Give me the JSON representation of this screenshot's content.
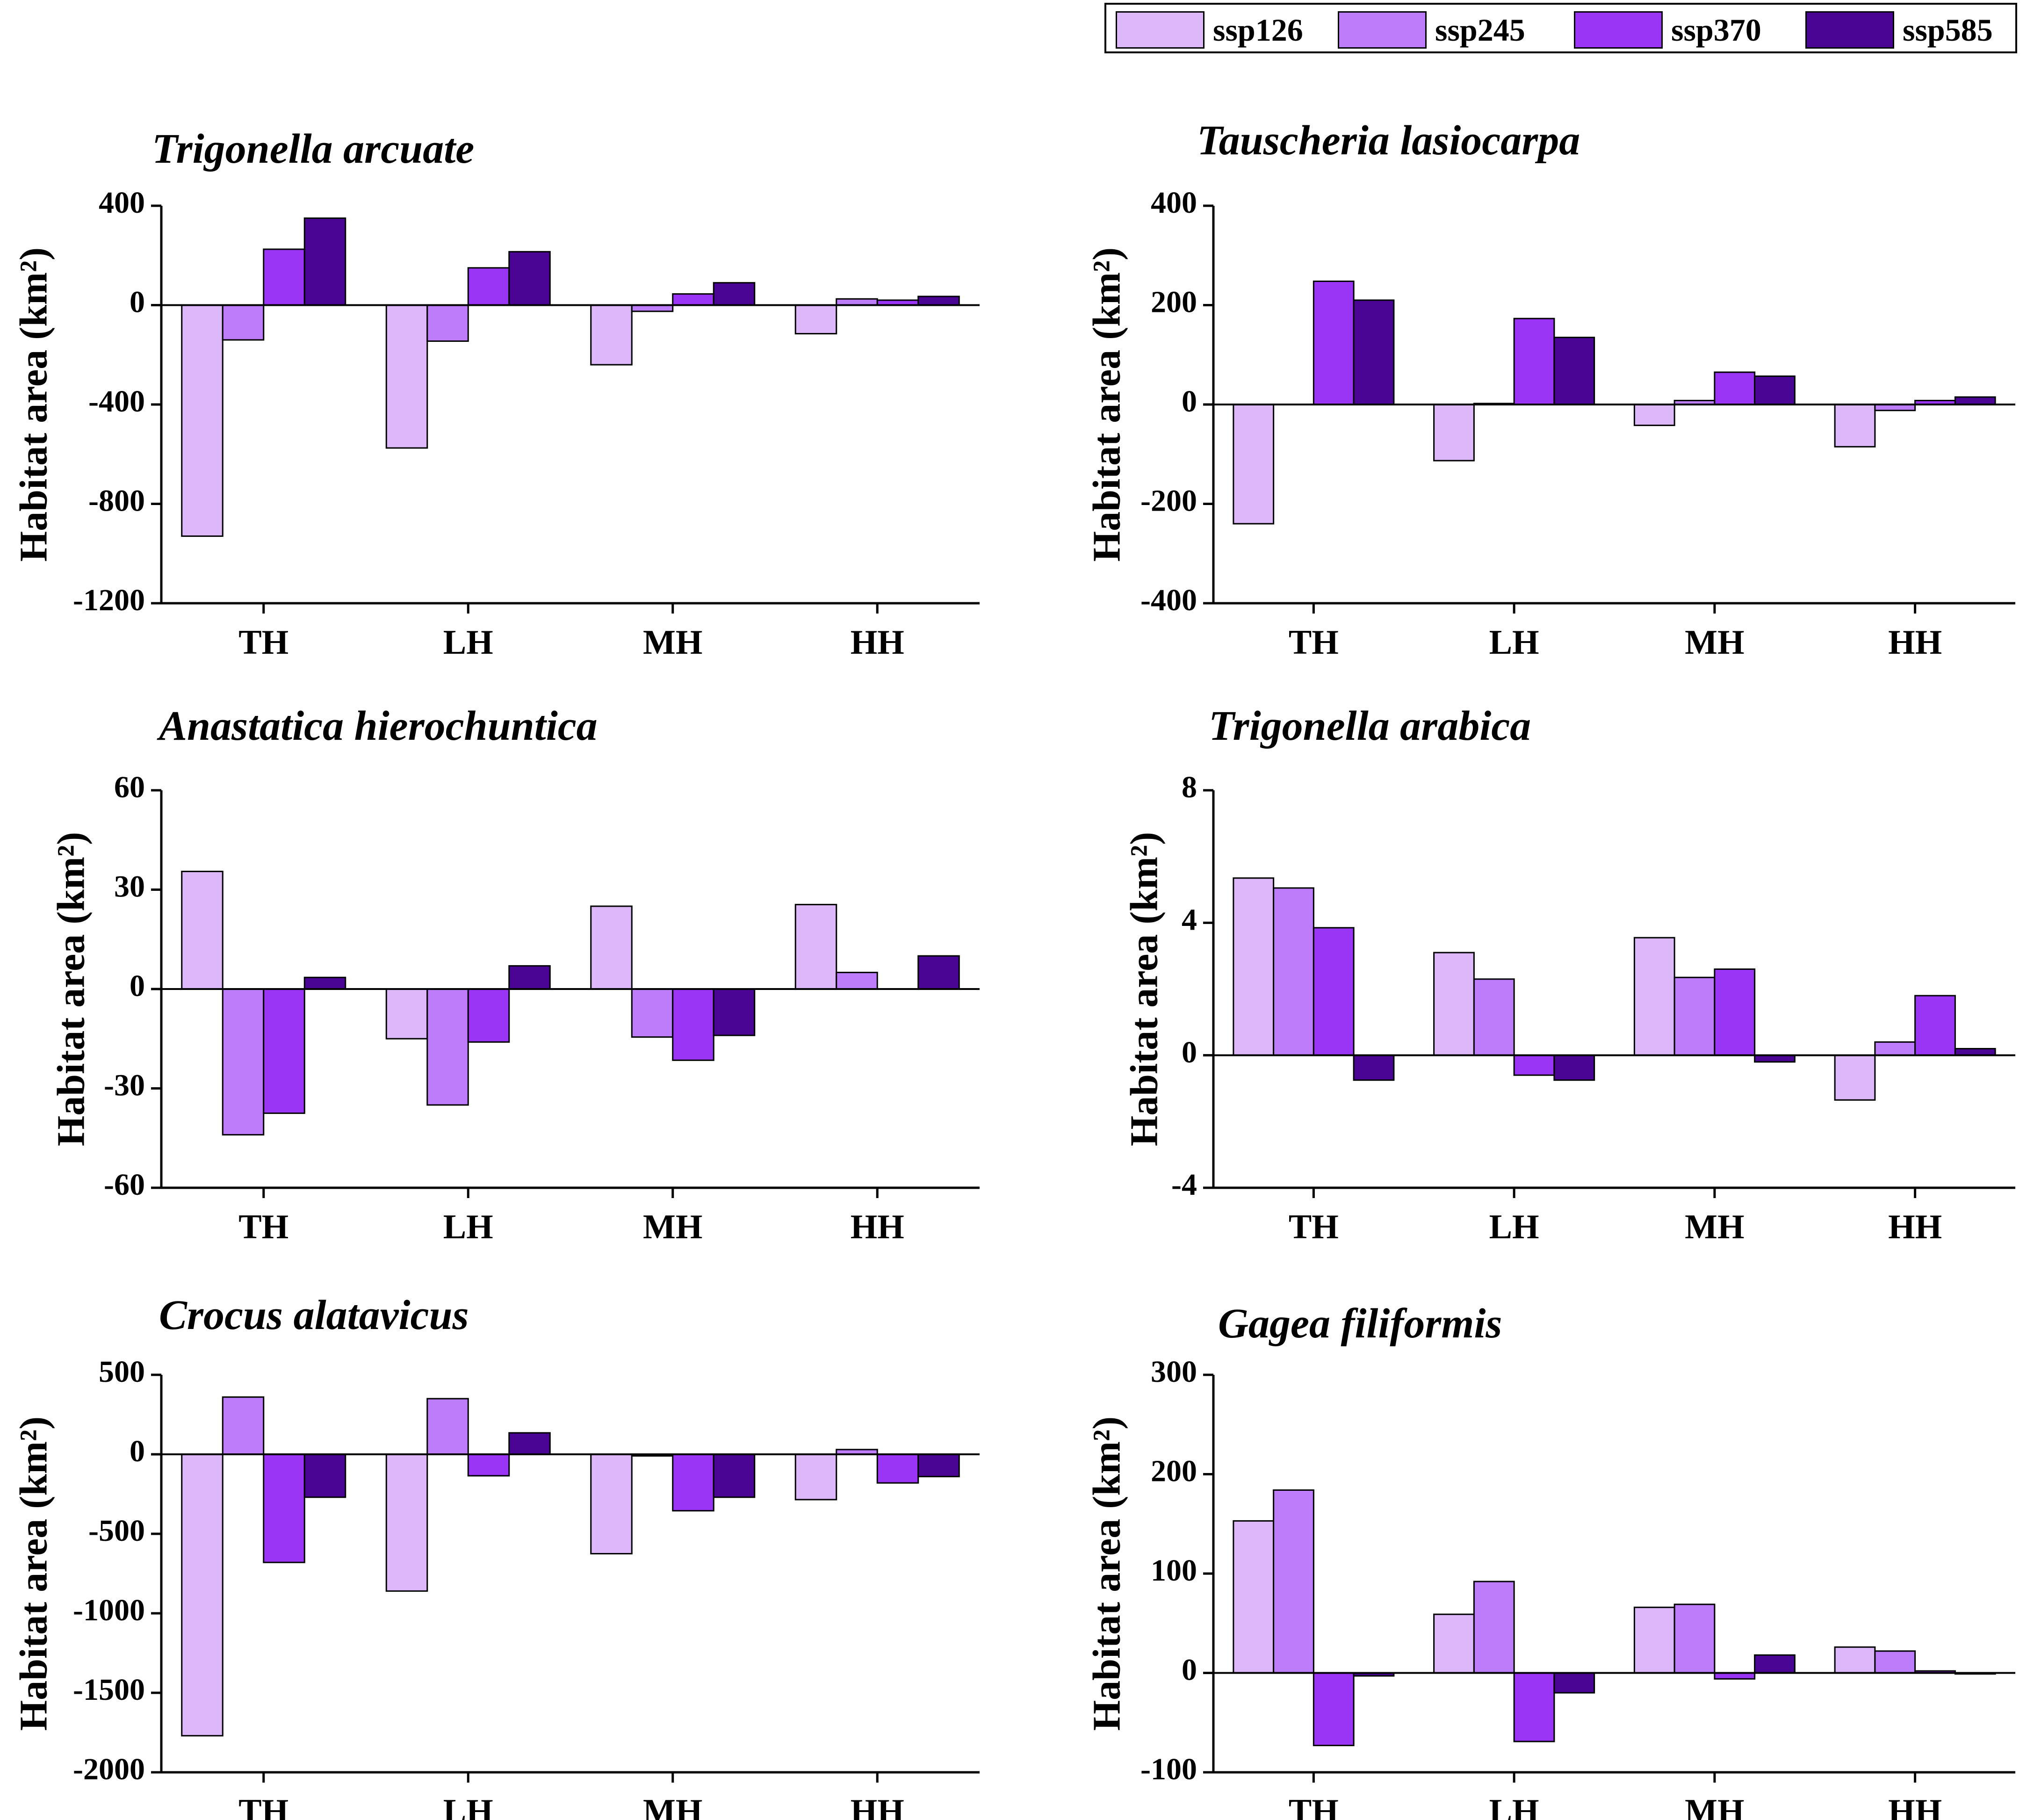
{
  "legend": {
    "items": [
      {
        "label": "ssp126",
        "color": "#dcb8fb"
      },
      {
        "label": "ssp245",
        "color": "#bd7cfa"
      },
      {
        "label": "ssp370",
        "color": "#9b35f5"
      },
      {
        "label": "ssp585",
        "color": "#4b0595"
      }
    ]
  },
  "chart_data": [
    {
      "type": "bar",
      "title": "Trigonella arcuate",
      "ylabel": "Habitat area (km²)",
      "ylim": [
        -1200,
        400
      ],
      "yticks": [
        400,
        0,
        -400,
        -800,
        -1200
      ],
      "categories": [
        "TH",
        "LH",
        "MH",
        "HH"
      ],
      "series": [
        {
          "name": "ssp126",
          "values": [
            -930,
            -575,
            -240,
            -115
          ]
        },
        {
          "name": "ssp245",
          "values": [
            -140,
            -145,
            -25,
            25
          ]
        },
        {
          "name": "ssp370",
          "values": [
            225,
            150,
            45,
            20
          ]
        },
        {
          "name": "ssp585",
          "values": [
            350,
            215,
            90,
            35
          ]
        }
      ]
    },
    {
      "type": "bar",
      "title": "Tauscheria lasiocarpa",
      "ylabel": "Habitat area (km²)",
      "ylim": [
        -400,
        400
      ],
      "yticks": [
        400,
        200,
        0,
        -200,
        -400
      ],
      "categories": [
        "TH",
        "LH",
        "MH",
        "HH"
      ],
      "series": [
        {
          "name": "ssp126",
          "values": [
            -240,
            -113,
            -42,
            -85
          ]
        },
        {
          "name": "ssp245",
          "values": [
            0,
            2,
            8,
            -12
          ]
        },
        {
          "name": "ssp370",
          "values": [
            248,
            173,
            65,
            8
          ]
        },
        {
          "name": "ssp585",
          "values": [
            210,
            135,
            57,
            15
          ]
        }
      ]
    },
    {
      "type": "bar",
      "title": "Anastatica hierochuntica",
      "ylabel": "Habitat area (km²)",
      "ylim": [
        -60,
        60
      ],
      "yticks": [
        60,
        30,
        0,
        -30,
        -60
      ],
      "categories": [
        "TH",
        "LH",
        "MH",
        "HH"
      ],
      "series": [
        {
          "name": "ssp126",
          "values": [
            35.5,
            -15,
            25,
            25.5
          ]
        },
        {
          "name": "ssp245",
          "values": [
            -44,
            -35,
            -14.5,
            5
          ]
        },
        {
          "name": "ssp370",
          "values": [
            -37.5,
            -16,
            -21.5,
            0
          ]
        },
        {
          "name": "ssp585",
          "values": [
            3.5,
            7,
            -14,
            10
          ]
        }
      ]
    },
    {
      "type": "bar",
      "title": "Trigonella arabica",
      "ylabel": "Habitat area (km²)",
      "ylim": [
        -4,
        8
      ],
      "yticks": [
        8,
        4,
        0,
        -4
      ],
      "categories": [
        "TH",
        "LH",
        "MH",
        "HH"
      ],
      "series": [
        {
          "name": "ssp126",
          "values": [
            5.35,
            3.1,
            3.55,
            -1.35
          ]
        },
        {
          "name": "ssp245",
          "values": [
            5.05,
            2.3,
            2.35,
            0.4
          ]
        },
        {
          "name": "ssp370",
          "values": [
            3.85,
            -0.6,
            2.6,
            1.8
          ]
        },
        {
          "name": "ssp585",
          "values": [
            -0.75,
            -0.75,
            -0.2,
            0.2
          ]
        }
      ]
    },
    {
      "type": "bar",
      "title": "Crocus alatavicus",
      "ylabel": "Habitat area (km²)",
      "ylim": [
        -2000,
        500
      ],
      "yticks": [
        500,
        0,
        -500,
        -1000,
        -1500,
        -2000
      ],
      "categories": [
        "TH",
        "LH",
        "MH",
        "HH"
      ],
      "series": [
        {
          "name": "ssp126",
          "values": [
            -1770,
            -860,
            -625,
            -285
          ]
        },
        {
          "name": "ssp245",
          "values": [
            360,
            350,
            -10,
            30
          ]
        },
        {
          "name": "ssp370",
          "values": [
            -680,
            -135,
            -355,
            -180
          ]
        },
        {
          "name": "ssp585",
          "values": [
            -270,
            135,
            -270,
            -140
          ]
        }
      ]
    },
    {
      "type": "bar",
      "title": "Gagea filiformis",
      "ylabel": "Habitat area (km²)",
      "ylim": [
        -100,
        300
      ],
      "yticks": [
        300,
        200,
        100,
        0,
        -100
      ],
      "categories": [
        "TH",
        "LH",
        "MH",
        "HH"
      ],
      "series": [
        {
          "name": "ssp126",
          "values": [
            153,
            59,
            66,
            26
          ]
        },
        {
          "name": "ssp245",
          "values": [
            184,
            92,
            69,
            22
          ]
        },
        {
          "name": "ssp370",
          "values": [
            -73,
            -69,
            -6,
            2
          ]
        },
        {
          "name": "ssp585",
          "values": [
            -3,
            -20,
            18,
            -1
          ]
        }
      ]
    }
  ]
}
